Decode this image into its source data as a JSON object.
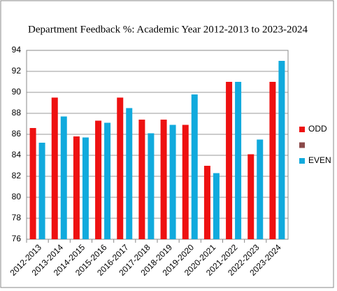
{
  "chart_data": {
    "type": "bar",
    "title": "Department Feedback %: Academic Year 2012-2013 to 2023-2024",
    "categories": [
      "2012-2013",
      "2013-2014",
      "2014-2015",
      "2015-2016",
      "2016-2017",
      "2017-2018",
      "2018-2019",
      "2019-2020",
      "2020-2021",
      "2021-2022",
      "2022-2023",
      "2023-2024"
    ],
    "series": [
      {
        "name": "ODD",
        "color": "#ee1111",
        "values": [
          86.6,
          89.5,
          85.8,
          87.3,
          89.5,
          87.4,
          87.4,
          86.9,
          83.0,
          91.0,
          84.1,
          91.0
        ]
      },
      {
        "name": null,
        "color": "#8b4a4a",
        "values": [
          null,
          null,
          null,
          null,
          null,
          null,
          null,
          null,
          null,
          null,
          null,
          null
        ]
      },
      {
        "name": "EVEN",
        "color": "#11aadd",
        "values": [
          85.2,
          87.7,
          85.7,
          87.1,
          88.5,
          86.1,
          86.9,
          89.8,
          82.3,
          91.0,
          85.5,
          93.0
        ]
      }
    ],
    "ylim": [
      76,
      94
    ],
    "yticks": [
      76,
      78,
      80,
      82,
      84,
      86,
      88,
      90,
      92,
      94
    ],
    "grid": true,
    "legend": "right"
  }
}
